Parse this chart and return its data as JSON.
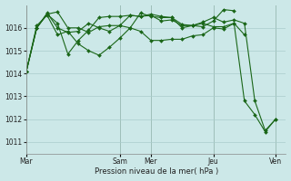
{
  "background_color": "#cce8e8",
  "grid_color": "#aacccc",
  "line_color": "#1a6618",
  "ylim": [
    1010.5,
    1017.0
  ],
  "yticks": [
    1011,
    1012,
    1013,
    1014,
    1015,
    1016
  ],
  "xlabel": "Pression niveau de la mer( hPa )",
  "xtick_positions": [
    0,
    9,
    12,
    18,
    24
  ],
  "xtick_labels": [
    "Mar",
    "Sam",
    "Mer",
    "Jeu",
    "Ven"
  ],
  "xlim": [
    0,
    25
  ],
  "s1_x": [
    0,
    1,
    2,
    3,
    4,
    5,
    6,
    7,
    8,
    9,
    10,
    11,
    12,
    13,
    14,
    15,
    16,
    17,
    18,
    19,
    20,
    21,
    22,
    23,
    24
  ],
  "s1_y": [
    1014.1,
    1016.0,
    1016.65,
    1016.0,
    1015.8,
    1015.85,
    1016.2,
    1016.0,
    1015.85,
    1016.1,
    1016.0,
    1016.65,
    1016.5,
    1016.45,
    1016.45,
    1016.0,
    1016.1,
    1016.25,
    1016.45,
    1016.25,
    1016.35,
    1016.2,
    1012.8,
    1011.5,
    1012.0
  ],
  "s2_x": [
    0,
    1,
    2,
    3,
    4,
    5,
    6,
    7,
    8,
    9,
    10,
    11,
    12,
    13,
    14,
    15,
    16,
    17,
    18,
    19,
    20,
    21
  ],
  "s2_y": [
    1014.1,
    1016.1,
    1016.55,
    1015.7,
    1015.85,
    1015.3,
    1015.0,
    1014.8,
    1015.15,
    1015.55,
    1016.0,
    1015.85,
    1015.45,
    1015.45,
    1015.5,
    1015.5,
    1015.65,
    1015.7,
    1016.0,
    1015.95,
    1016.2,
    1015.7
  ],
  "s3_x": [
    0,
    1,
    2,
    3,
    4,
    5,
    6,
    7,
    8,
    9,
    10,
    11,
    12,
    13,
    14,
    15,
    16,
    17,
    18,
    19,
    20
  ],
  "s3_y": [
    1014.1,
    1016.0,
    1016.6,
    1016.2,
    1014.85,
    1015.45,
    1015.9,
    1016.45,
    1016.5,
    1016.5,
    1016.55,
    1016.5,
    1016.6,
    1016.5,
    1016.45,
    1016.15,
    1016.1,
    1016.05,
    1016.3,
    1016.8,
    1016.75
  ],
  "s4_x": [
    0,
    1,
    2,
    3,
    4,
    5,
    6,
    7,
    8,
    9,
    10,
    11,
    12,
    13,
    14,
    15,
    16,
    17,
    18,
    19,
    20,
    21,
    22,
    23,
    24
  ],
  "s4_y": [
    1014.1,
    1016.0,
    1016.6,
    1016.7,
    1016.0,
    1016.0,
    1015.8,
    1016.05,
    1016.1,
    1016.1,
    1016.55,
    1016.5,
    1016.55,
    1016.3,
    1016.35,
    1016.1,
    1016.1,
    1016.2,
    1016.05,
    1016.05,
    1016.2,
    1012.8,
    1012.2,
    1011.45,
    1012.0
  ]
}
